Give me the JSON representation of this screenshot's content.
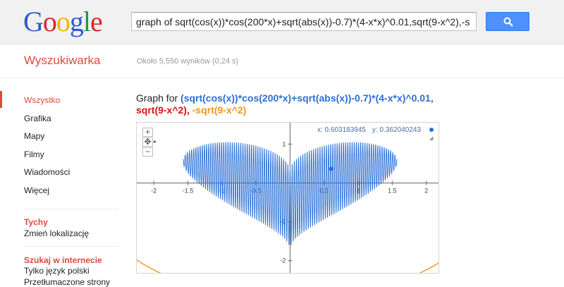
{
  "logo": {
    "text": "Google",
    "letters": [
      "G",
      "o",
      "o",
      "g",
      "l",
      "e"
    ],
    "colors": [
      "#2f5bd0",
      "#d9262b",
      "#f4b400",
      "#2f5bd0",
      "#1e9a3e",
      "#d9262b"
    ]
  },
  "search": {
    "value": "graph of sqrt(cos(x))*cos(200*x)+sqrt(abs(x))-0.7)*(4-x*x)^0.01,sqrt(9-x^2),-s",
    "button_icon": "search-icon"
  },
  "header": {
    "product": "Wyszukiwarka",
    "result_stats": "Około 5,550 wyników (0,24 s)"
  },
  "nav": {
    "items": [
      {
        "label": "Wszystko",
        "active": true
      },
      {
        "label": "Grafika",
        "active": false
      },
      {
        "label": "Mapy",
        "active": false
      },
      {
        "label": "Filmy",
        "active": false
      },
      {
        "label": "Wiadomości",
        "active": false
      },
      {
        "label": "Więcej",
        "active": false
      }
    ],
    "location": {
      "heading": "Tychy",
      "link": "Zmień lokalizację"
    },
    "web": {
      "heading": "Szukaj w internecie",
      "links": [
        "Tylko język polski",
        "Przetłumaczone strony"
      ]
    }
  },
  "graph": {
    "title_prefix": "Graph for ",
    "func1": "(sqrt(cos(x))*cos(200*x)+sqrt(abs(x))-0.7)*(4-x*x)^0.01,",
    "func2": "sqrt(9-x^2),",
    "func3": "-sqrt(9-x^2)",
    "colors": {
      "func1": "#2a6fd6",
      "func2": "#dd1111",
      "func3": "#f0961e"
    },
    "zoom_in": "+",
    "zoom_out": "−",
    "pan_icon": "pan-icon",
    "coord_x": "x: 0.603183945",
    "coord_y": "y: 0.362040243"
  },
  "chart_data": {
    "type": "line",
    "title": "",
    "xlabel": "",
    "ylabel": "",
    "xlim": [
      -2.25,
      2.2
    ],
    "ylim": [
      -2.35,
      1.55
    ],
    "grid": false,
    "x_ticks": [
      "-2",
      "-1.5",
      "-1",
      "-0.5",
      "0.5",
      "1",
      "1.5",
      "2"
    ],
    "y_ticks": [
      "1",
      "-1",
      "-2"
    ],
    "series": [
      {
        "function": "(sqrt(cos(x))*cos(200*x)+sqrt(abs(x))-0.7)*(4-x*x)^0.01",
        "color": "#2a6fd6",
        "domain": [
          -1.5708,
          1.5708
        ]
      },
      {
        "function": "sqrt(9-x^2)",
        "color": "#dd1111",
        "domain": [
          -3,
          3
        ]
      },
      {
        "function": "-sqrt(9-x^2)",
        "color": "#f0961e",
        "domain": [
          -3,
          3
        ]
      }
    ]
  }
}
